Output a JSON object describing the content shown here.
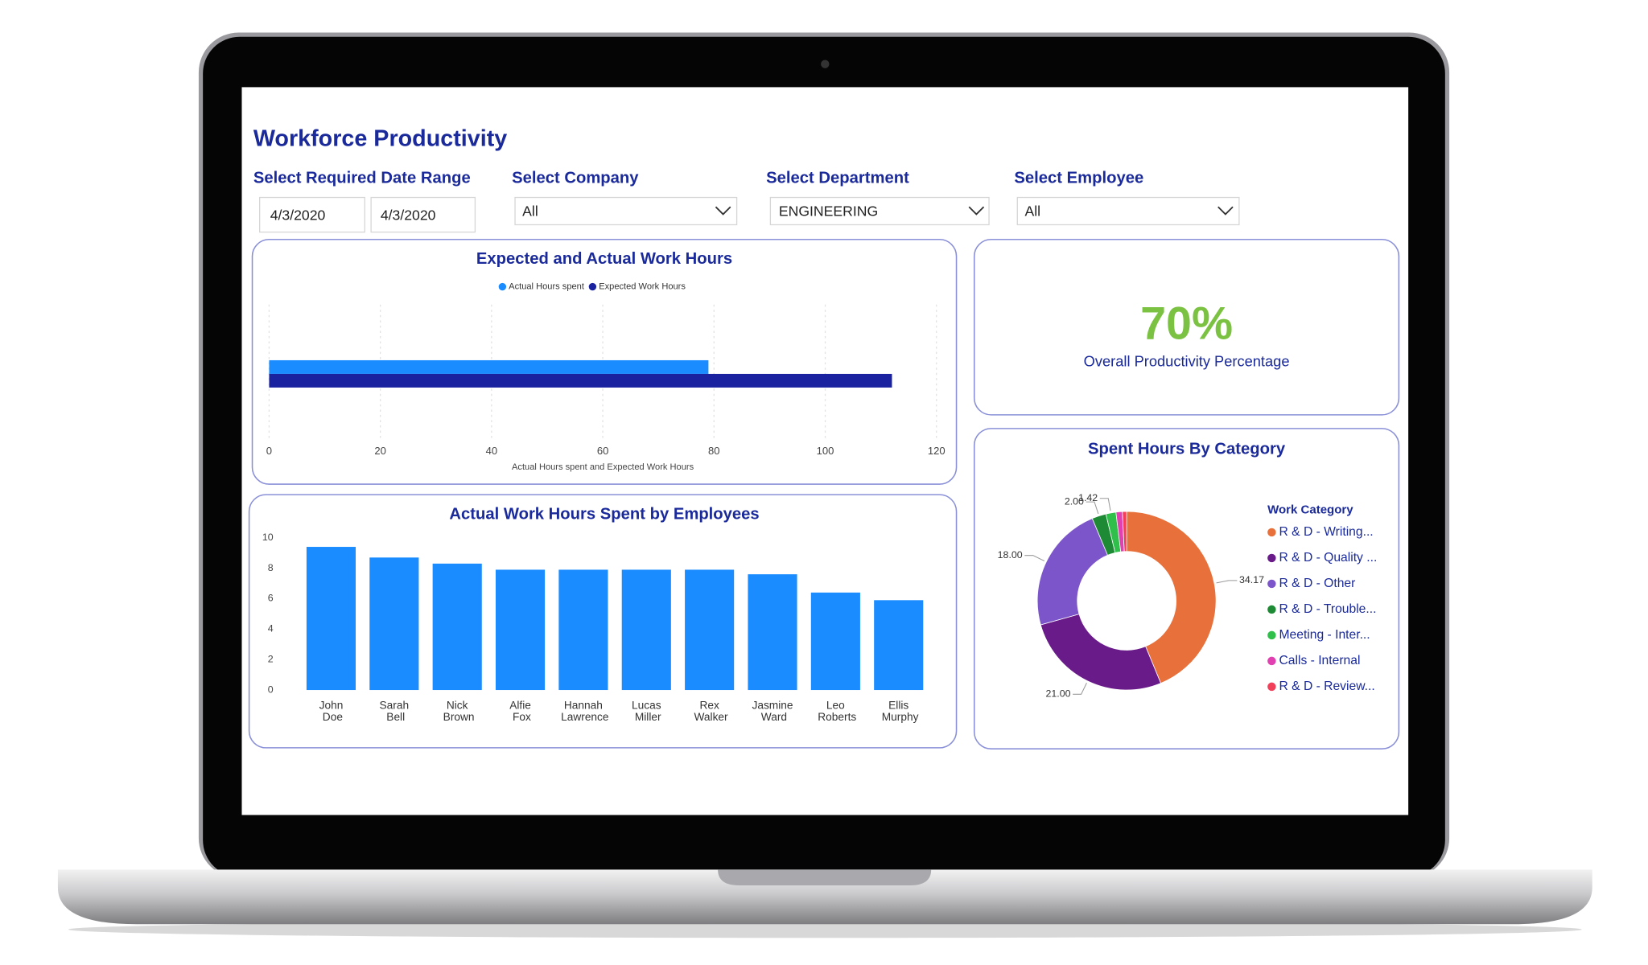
{
  "header": {
    "title": "Workforce Productivity"
  },
  "filters": [
    {
      "label": "Select Required Date Range",
      "values": [
        "4/3/2020",
        "4/3/2020"
      ]
    },
    {
      "label": "Select Company",
      "value": "All"
    },
    {
      "label": "Select Department",
      "value": "ENGINEERING"
    },
    {
      "label": "Select Employee",
      "value": "All"
    }
  ],
  "kpi": {
    "value": "70%",
    "label": "Overall Productivity Percentage"
  },
  "chart_data": [
    {
      "type": "bar",
      "orientation": "horizontal",
      "title": "Expected and Actual Work Hours",
      "categories": [
        null
      ],
      "series": [
        {
          "name": "Actual Hours spent",
          "color": "#1a8cff",
          "values": [
            79
          ]
        },
        {
          "name": "Expected Work Hours",
          "color": "#1a22a0",
          "values": [
            112
          ]
        }
      ],
      "xlim": [
        0,
        120
      ],
      "xticks": [
        0,
        20,
        40,
        60,
        80,
        100,
        120
      ],
      "xlabel": "Actual Hours spent and Expected Work Hours",
      "grid": true
    },
    {
      "type": "bar",
      "orientation": "vertical",
      "title": "Actual Work Hours Spent by Employees",
      "categories": [
        "John Doe",
        "Sarah Bell",
        "Nick Brown",
        "Alfie Fox",
        "Hannah Lawrence",
        "Lucas Miller",
        "Rex Walker",
        "Jasmine Ward",
        "Leo Roberts",
        "Ellis Murphy"
      ],
      "values": [
        9.4,
        8.7,
        8.3,
        7.9,
        7.9,
        7.9,
        7.9,
        7.6,
        6.4,
        5.9
      ],
      "color": "#1a8cff",
      "ylim": [
        0,
        10
      ],
      "yticks": [
        0,
        2,
        4,
        6,
        8,
        10
      ],
      "grid": false
    },
    {
      "type": "donut",
      "title": "Spent Hours By Category",
      "legend_title": "Work Category",
      "categories": [
        "R & D - Writing...",
        "R & D - Quality ...",
        "R & D - Other",
        "R & D - Trouble...",
        "Meeting - Inter...",
        "Calls - Internal",
        "R & D - Review..."
      ],
      "values": [
        34.17,
        21,
        18,
        2,
        1.42,
        0.9,
        0.6
      ],
      "value_labels": [
        "34.17",
        "21.00",
        "18.00",
        "2.00",
        "1.42",
        null,
        null
      ],
      "colors": [
        "#e8703a",
        "#6a1b8a",
        "#7b55c9",
        "#1f8a35",
        "#2fbf4a",
        "#e040b0",
        "#f0405a"
      ]
    }
  ]
}
